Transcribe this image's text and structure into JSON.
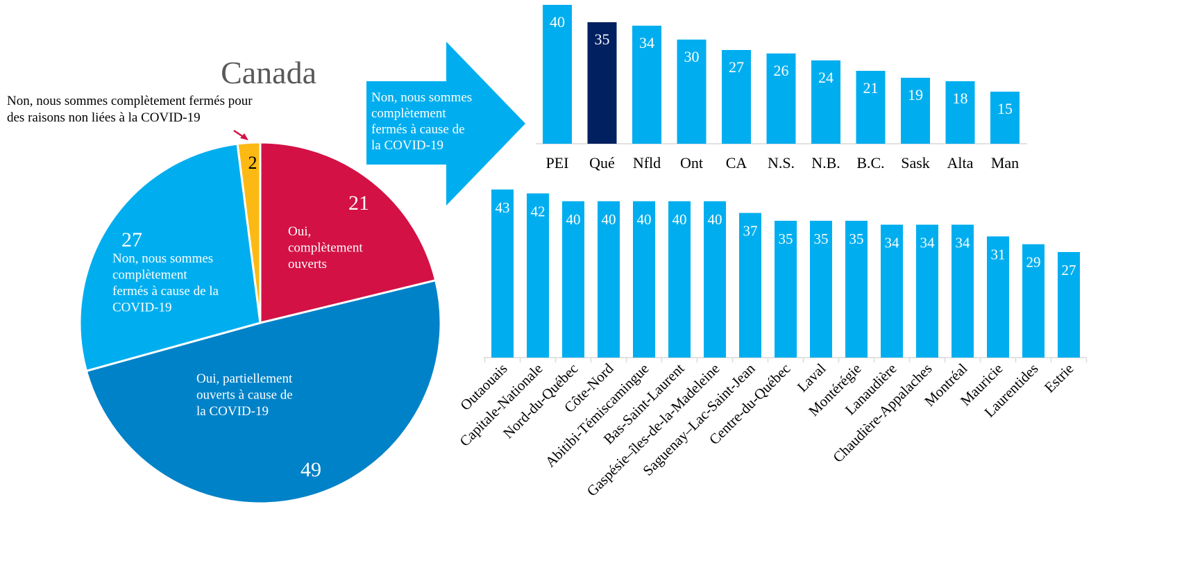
{
  "chart_data": [
    {
      "type": "pie",
      "title": "Canada",
      "categories": [
        [
          "Oui,",
          "complètement",
          "ouverts"
        ],
        [
          "Oui, partiellement",
          "ouverts à cause de",
          "la COVID-19"
        ],
        [
          "Non, nous sommes",
          "complètement",
          "fermés à cause de la",
          "COVID-19"
        ],
        [
          "Non, nous sommes complètement fermés pour",
          "des raisons non liées à  la COVID-19"
        ]
      ],
      "values": [
        21,
        49,
        27,
        2
      ],
      "colors": [
        "#d31145",
        "#0082c8",
        "#00aeef",
        "#fdb913"
      ]
    },
    {
      "type": "bar",
      "title": [
        "Non, nous sommes",
        "complètement",
        "fermés à cause de",
        "la COVID-19"
      ],
      "categories": [
        "PEI",
        "Qué",
        "Nfld",
        "Ont",
        "CA",
        "N.S.",
        "N.B.",
        "B.C.",
        "Sask",
        "Alta",
        "Man"
      ],
      "values": [
        40,
        35,
        34,
        30,
        27,
        26,
        24,
        21,
        19,
        18,
        15
      ],
      "colors": [
        "#00aeef",
        "#002060",
        "#00aeef",
        "#00aeef",
        "#00aeef",
        "#00aeef",
        "#00aeef",
        "#00aeef",
        "#00aeef",
        "#00aeef",
        "#00aeef"
      ]
    },
    {
      "type": "bar",
      "categories": [
        "Outaouais",
        "Capitale-Nationale",
        "Nord-du-Québec",
        "Côte-Nord",
        "Abitibi-Témiscamingue",
        "Bas-Saint-Laurent",
        "Gaspésie–îles-de-la-Madeleine",
        "Saguenay–Lac-Saint-Jean",
        "Centre-du-Québec",
        "Laval",
        "Montérégie",
        "Lanaudière",
        "Chaudière-Appalaches",
        "Montréal",
        "Mauricie",
        "Laurentides",
        "Estrie"
      ],
      "values": [
        43,
        42,
        40,
        40,
        40,
        40,
        40,
        37,
        35,
        35,
        35,
        34,
        34,
        34,
        31,
        29,
        27
      ],
      "color": "#00aeef"
    }
  ]
}
